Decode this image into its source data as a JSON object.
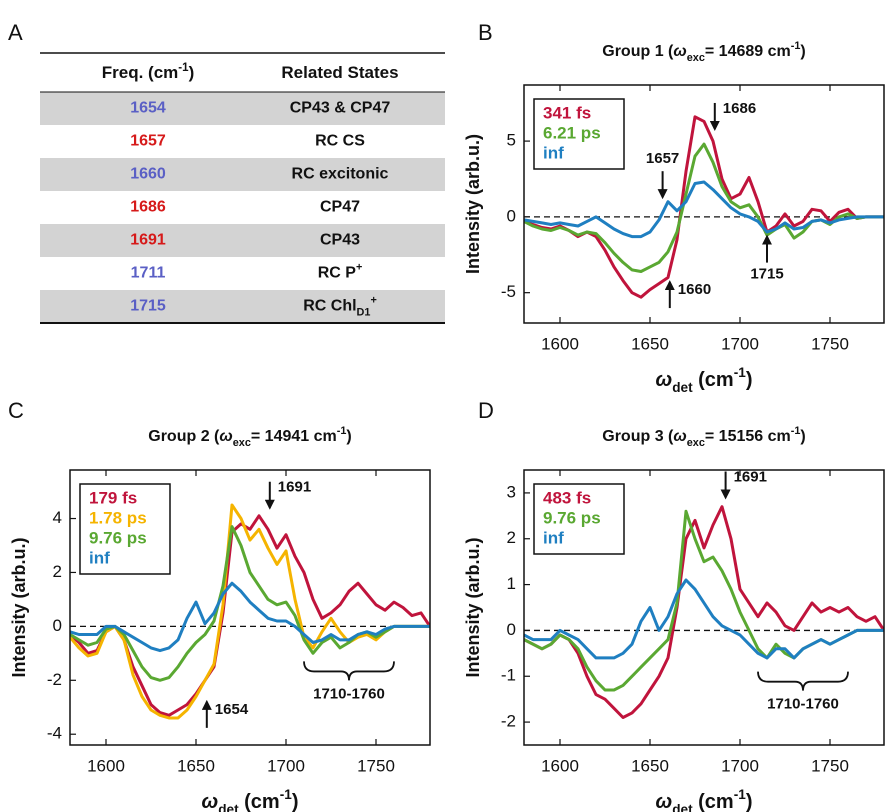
{
  "table": {
    "panel": "A",
    "header": [
      [
        {
          "text": "Freq. (cm"
        },
        {
          "text": "-1",
          "shift": "super"
        },
        {
          "text": ")"
        }
      ],
      [
        {
          "text": "Related States"
        }
      ]
    ],
    "rows": [
      {
        "freq": 1654,
        "color": "#5a5fc5",
        "state": [
          {
            "text": "CP43 & CP47"
          }
        ]
      },
      {
        "freq": 1657,
        "color": "#d61a1a",
        "state": [
          {
            "text": "RC CS"
          }
        ]
      },
      {
        "freq": 1660,
        "color": "#5a5fc5",
        "state": [
          {
            "text": "RC excitonic"
          }
        ]
      },
      {
        "freq": 1686,
        "color": "#d61a1a",
        "state": [
          {
            "text": "CP47"
          }
        ]
      },
      {
        "freq": 1691,
        "color": "#d61a1a",
        "state": [
          {
            "text": "CP43"
          }
        ]
      },
      {
        "freq": 1711,
        "color": "#5a5fc5",
        "state": [
          {
            "text": "RC P"
          },
          {
            "text": "+",
            "shift": "super"
          }
        ]
      },
      {
        "freq": 1715,
        "color": "#5a5fc5",
        "state": [
          {
            "text": "RC Chl"
          },
          {
            "text": "D1",
            "shift": "sub"
          },
          {
            "text": "+",
            "shift": "super"
          }
        ]
      }
    ]
  },
  "chart_data": [
    {
      "panel": "B",
      "type": "line",
      "title": [
        {
          "text": "Group 1 ("
        },
        {
          "text": "ω",
          "style": "italic"
        },
        {
          "text": "exc",
          "shift": "sub"
        },
        {
          "text": "= 14689 cm"
        },
        {
          "text": "-1",
          "shift": "super"
        },
        {
          "text": ")"
        }
      ],
      "x_label": [
        {
          "text": "ω",
          "style": "italic"
        },
        {
          "text": "det",
          "shift": "sub"
        },
        {
          "text": " (cm"
        },
        {
          "text": "-1",
          "shift": "super"
        },
        {
          "text": ")"
        }
      ],
      "y_label": "Intensity (arb.u.)",
      "x": [
        1580,
        1585,
        1590,
        1595,
        1600,
        1605,
        1610,
        1615,
        1620,
        1625,
        1630,
        1635,
        1640,
        1645,
        1650,
        1655,
        1660,
        1665,
        1670,
        1675,
        1680,
        1685,
        1690,
        1695,
        1700,
        1705,
        1710,
        1715,
        1720,
        1725,
        1730,
        1735,
        1740,
        1745,
        1750,
        1755,
        1760,
        1765,
        1770,
        1775,
        1780
      ],
      "xlim": [
        1580,
        1780
      ],
      "xticks": [
        1600,
        1650,
        1700,
        1750
      ],
      "ylim": [
        -7,
        8.7
      ],
      "yticks": [
        -5,
        0,
        5
      ],
      "hline": 0,
      "legend": "upper left",
      "series": [
        {
          "name": "341 fs",
          "color": "#c0143c",
          "values": [
            -0.3,
            -0.5,
            -0.7,
            -0.8,
            -0.6,
            -0.9,
            -1.3,
            -1.0,
            -1.3,
            -2.2,
            -3.3,
            -4.2,
            -5.0,
            -5.3,
            -4.8,
            -4.4,
            -4.0,
            -1.5,
            3.0,
            6.6,
            6.3,
            5.0,
            2.5,
            1.2,
            1.5,
            2.6,
            1.0,
            -1.0,
            -0.6,
            0.2,
            -0.6,
            -0.3,
            0.5,
            0.4,
            -0.3,
            0.3,
            0.5,
            -0.1,
            0.0,
            0.0,
            0.0
          ]
        },
        {
          "name": "6.21 ps",
          "color": "#5aa832",
          "values": [
            -0.3,
            -0.6,
            -0.8,
            -0.9,
            -0.7,
            -0.9,
            -1.2,
            -1.0,
            -1.1,
            -1.7,
            -2.4,
            -3.0,
            -3.5,
            -3.6,
            -3.3,
            -3.0,
            -2.3,
            -1.0,
            1.5,
            4.0,
            4.8,
            3.6,
            2.0,
            1.0,
            0.6,
            0.8,
            0.0,
            -1.2,
            -0.8,
            -0.5,
            -1.4,
            -1.0,
            -0.3,
            -0.2,
            -0.5,
            0.0,
            0.2,
            -0.1,
            0.0,
            0.0,
            0.0
          ]
        },
        {
          "name": "inf",
          "color": "#1f7fc1",
          "values": [
            -0.2,
            -0.3,
            -0.4,
            -0.5,
            -0.4,
            -0.5,
            -0.6,
            -0.3,
            0.0,
            -0.4,
            -0.8,
            -1.1,
            -1.3,
            -1.3,
            -1.0,
            -0.2,
            1.0,
            0.4,
            1.0,
            2.2,
            2.3,
            1.8,
            1.2,
            0.6,
            0.2,
            0.0,
            -0.3,
            -1.0,
            -0.8,
            -0.4,
            -0.8,
            -0.7,
            -0.3,
            -0.2,
            -0.4,
            -0.2,
            -0.1,
            0.0,
            0.0,
            0.0,
            0.0
          ]
        }
      ],
      "annotations": [
        {
          "kind": "arrow",
          "text": "1657",
          "x": 1657,
          "y": 1.3,
          "direction": "down",
          "side": "top"
        },
        {
          "kind": "arrow",
          "text": "1686",
          "x": 1686,
          "y": 5.8,
          "direction": "down",
          "side": "right"
        },
        {
          "kind": "arrow",
          "text": "1660",
          "x": 1661,
          "y": -4.3,
          "direction": "up",
          "side": "right"
        },
        {
          "kind": "arrow",
          "text": "1715",
          "x": 1715,
          "y": -1.3,
          "direction": "up",
          "side": "bottom"
        }
      ]
    },
    {
      "panel": "C",
      "type": "line",
      "title": [
        {
          "text": "Group 2 ("
        },
        {
          "text": "ω",
          "style": "italic"
        },
        {
          "text": "exc",
          "shift": "sub"
        },
        {
          "text": "= 14941 cm"
        },
        {
          "text": "-1",
          "shift": "super"
        },
        {
          "text": ")"
        }
      ],
      "x_label": [
        {
          "text": "ω",
          "style": "italic"
        },
        {
          "text": "det",
          "shift": "sub"
        },
        {
          "text": " (cm"
        },
        {
          "text": "-1",
          "shift": "super"
        },
        {
          "text": ")"
        }
      ],
      "y_label": "Intensity (arb.u.)",
      "x": [
        1580,
        1585,
        1590,
        1595,
        1600,
        1605,
        1610,
        1615,
        1620,
        1625,
        1630,
        1635,
        1640,
        1645,
        1650,
        1655,
        1660,
        1665,
        1670,
        1675,
        1680,
        1685,
        1690,
        1695,
        1700,
        1705,
        1710,
        1715,
        1720,
        1725,
        1730,
        1735,
        1740,
        1745,
        1750,
        1755,
        1760,
        1765,
        1770,
        1775,
        1780
      ],
      "xlim": [
        1580,
        1780
      ],
      "xticks": [
        1600,
        1650,
        1700,
        1750
      ],
      "ylim": [
        -4.4,
        5.8
      ],
      "yticks": [
        -4,
        -2,
        0,
        2,
        4
      ],
      "hline": 0,
      "legend": "upper left",
      "series": [
        {
          "name": "179 fs",
          "color": "#c0143c",
          "values": [
            -0.3,
            -0.6,
            -1.0,
            -0.9,
            -0.2,
            0.0,
            -0.5,
            -1.5,
            -2.2,
            -2.9,
            -3.2,
            -3.3,
            -3.1,
            -2.9,
            -2.5,
            -2.0,
            -1.5,
            0.5,
            3.5,
            3.8,
            3.6,
            4.1,
            3.6,
            2.9,
            3.4,
            2.6,
            2.0,
            1.0,
            0.3,
            0.5,
            0.8,
            1.3,
            1.6,
            1.2,
            0.8,
            0.6,
            0.9,
            0.7,
            0.4,
            0.5,
            0.0
          ]
        },
        {
          "name": "1.78 ps",
          "color": "#f5b400",
          "values": [
            -0.4,
            -0.8,
            -1.1,
            -1.0,
            -0.2,
            0.0,
            -0.5,
            -1.8,
            -2.6,
            -3.1,
            -3.3,
            -3.4,
            -3.4,
            -3.1,
            -2.6,
            -2.0,
            -1.4,
            0.8,
            4.5,
            4.0,
            3.2,
            3.6,
            2.9,
            2.3,
            2.8,
            1.0,
            -0.4,
            -0.8,
            -0.2,
            0.3,
            -0.2,
            -0.6,
            -0.4,
            -0.3,
            -0.5,
            -0.2,
            0.0,
            0.0,
            0.0,
            0.0,
            0.0
          ]
        },
        {
          "name": "9.76 ps",
          "color": "#5aa832",
          "values": [
            -0.3,
            -0.5,
            -0.7,
            -0.6,
            -0.1,
            0.0,
            -0.3,
            -0.9,
            -1.5,
            -1.9,
            -2.0,
            -1.9,
            -1.5,
            -1.0,
            -0.6,
            -0.3,
            0.2,
            1.5,
            3.7,
            3.0,
            2.0,
            1.5,
            1.0,
            0.8,
            0.9,
            0.4,
            -0.5,
            -1.0,
            -0.6,
            -0.4,
            -0.8,
            -0.6,
            -0.3,
            -0.2,
            -0.4,
            -0.2,
            0.0,
            0.0,
            0.0,
            0.0,
            0.0
          ]
        },
        {
          "name": "inf",
          "color": "#1f7fc1",
          "values": [
            -0.2,
            -0.3,
            -0.3,
            -0.3,
            0.0,
            0.0,
            -0.2,
            -0.4,
            -0.6,
            -0.8,
            -0.9,
            -0.8,
            -0.5,
            0.3,
            0.9,
            0.1,
            0.5,
            1.2,
            1.6,
            1.3,
            0.9,
            0.6,
            0.3,
            0.2,
            0.2,
            0.0,
            -0.3,
            -0.6,
            -0.5,
            -0.3,
            -0.5,
            -0.5,
            -0.3,
            -0.2,
            -0.3,
            -0.1,
            0.0,
            0.0,
            0.0,
            0.0,
            0.0
          ]
        }
      ],
      "annotations": [
        {
          "kind": "arrow",
          "text": "1691",
          "x": 1691,
          "y": 4.4,
          "direction": "down",
          "side": "right"
        },
        {
          "kind": "arrow",
          "text": "1654",
          "x": 1656,
          "y": -2.8,
          "direction": "up",
          "side": "right"
        },
        {
          "kind": "brace",
          "text": "1710-1760",
          "x": [
            1710,
            1760
          ],
          "y": -1.3
        }
      ]
    },
    {
      "panel": "D",
      "type": "line",
      "title": [
        {
          "text": "Group 3 ("
        },
        {
          "text": "ω",
          "style": "italic"
        },
        {
          "text": "exc",
          "shift": "sub"
        },
        {
          "text": "= 15156 cm"
        },
        {
          "text": "-1",
          "shift": "super"
        },
        {
          "text": ")"
        }
      ],
      "x_label": [
        {
          "text": "ω",
          "style": "italic"
        },
        {
          "text": "det",
          "shift": "sub"
        },
        {
          "text": " (cm"
        },
        {
          "text": "-1",
          "shift": "super"
        },
        {
          "text": ")"
        }
      ],
      "y_label": "Intensity (arb.u.)",
      "x": [
        1580,
        1585,
        1590,
        1595,
        1600,
        1605,
        1610,
        1615,
        1620,
        1625,
        1630,
        1635,
        1640,
        1645,
        1650,
        1655,
        1660,
        1665,
        1670,
        1675,
        1680,
        1685,
        1690,
        1695,
        1700,
        1705,
        1710,
        1715,
        1720,
        1725,
        1730,
        1735,
        1740,
        1745,
        1750,
        1755,
        1760,
        1765,
        1770,
        1775,
        1780
      ],
      "xlim": [
        1580,
        1780
      ],
      "xticks": [
        1600,
        1650,
        1700,
        1750
      ],
      "ylim": [
        -2.5,
        3.5
      ],
      "yticks": [
        -2,
        -1,
        0,
        1,
        2,
        3
      ],
      "hline": 0,
      "legend": "upper left",
      "series": [
        {
          "name": "483 fs",
          "color": "#c0143c",
          "values": [
            -0.2,
            -0.3,
            -0.4,
            -0.3,
            -0.1,
            -0.2,
            -0.5,
            -1.0,
            -1.4,
            -1.5,
            -1.7,
            -1.9,
            -1.8,
            -1.6,
            -1.3,
            -1.0,
            -0.6,
            0.5,
            2.0,
            2.4,
            1.8,
            2.3,
            2.7,
            2.0,
            0.9,
            0.6,
            0.3,
            0.6,
            0.4,
            0.1,
            0.0,
            0.3,
            0.6,
            0.4,
            0.5,
            0.4,
            0.5,
            0.3,
            0.2,
            0.3,
            0.0
          ]
        },
        {
          "name": "9.76 ps",
          "color": "#5aa832",
          "values": [
            -0.2,
            -0.3,
            -0.4,
            -0.3,
            -0.1,
            -0.2,
            -0.4,
            -0.8,
            -1.1,
            -1.3,
            -1.3,
            -1.2,
            -1.0,
            -0.8,
            -0.6,
            -0.4,
            -0.2,
            0.6,
            2.6,
            2.0,
            1.5,
            1.6,
            1.3,
            0.9,
            0.4,
            0.0,
            -0.4,
            -0.6,
            -0.3,
            -0.5,
            -0.6,
            -0.4,
            -0.3,
            -0.2,
            -0.3,
            -0.2,
            -0.1,
            0.0,
            0.0,
            0.0,
            0.0
          ]
        },
        {
          "name": "inf",
          "color": "#1f7fc1",
          "values": [
            -0.1,
            -0.2,
            -0.2,
            -0.2,
            0.0,
            -0.1,
            -0.2,
            -0.4,
            -0.6,
            -0.6,
            -0.6,
            -0.5,
            -0.3,
            0.2,
            0.5,
            0.0,
            0.3,
            0.8,
            1.1,
            0.9,
            0.6,
            0.3,
            0.1,
            0.0,
            -0.1,
            -0.3,
            -0.5,
            -0.6,
            -0.4,
            -0.4,
            -0.6,
            -0.4,
            -0.3,
            -0.2,
            -0.3,
            -0.2,
            -0.1,
            0.0,
            0.0,
            0.0,
            0.0
          ]
        }
      ],
      "annotations": [
        {
          "kind": "arrow",
          "text": "1691",
          "x": 1692,
          "y": 2.9,
          "direction": "down",
          "side": "right"
        },
        {
          "kind": "brace",
          "text": "1710-1760",
          "x": [
            1710,
            1760
          ],
          "y": -0.9
        }
      ]
    }
  ]
}
